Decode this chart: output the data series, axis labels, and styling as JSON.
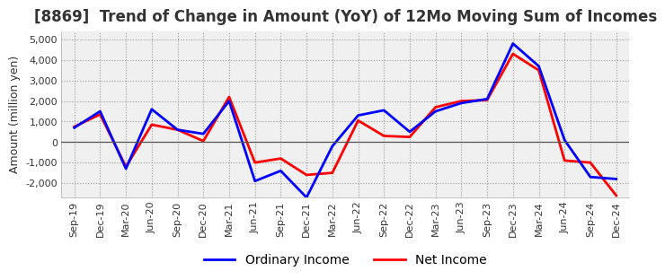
{
  "title": "[8869]  Trend of Change in Amount (YoY) of 12Mo Moving Sum of Incomes",
  "ylabel": "Amount (million yen)",
  "x_labels": [
    "Sep-19",
    "Dec-19",
    "Mar-20",
    "Jun-20",
    "Sep-20",
    "Dec-20",
    "Mar-21",
    "Jun-21",
    "Sep-21",
    "Dec-21",
    "Mar-22",
    "Jun-22",
    "Sep-22",
    "Dec-22",
    "Mar-23",
    "Jun-23",
    "Sep-23",
    "Dec-23",
    "Mar-24",
    "Jun-24",
    "Sep-24",
    "Dec-24"
  ],
  "ordinary_income": [
    700,
    1500,
    -1300,
    1600,
    600,
    400,
    2000,
    -1900,
    -1400,
    -2700,
    -200,
    1300,
    1550,
    500,
    1500,
    1900,
    2100,
    4800,
    3700,
    100,
    -1700,
    -1800
  ],
  "net_income": [
    750,
    1350,
    -1200,
    850,
    600,
    50,
    2200,
    -1000,
    -800,
    -1600,
    -1500,
    1050,
    300,
    250,
    1700,
    2000,
    2050,
    4300,
    3500,
    -900,
    -1000,
    -2600
  ],
  "ordinary_income_color": "#0000FF",
  "net_income_color": "#FF0000",
  "ylim": [
    -2700,
    5400
  ],
  "yticks": [
    -2000,
    -1000,
    0,
    1000,
    2000,
    3000,
    4000,
    5000
  ],
  "background_color": "#FFFFFF",
  "plot_bg_color": "#F0F0F0",
  "grid_color": "#999999",
  "title_fontsize": 12,
  "title_color": "#333333",
  "axis_label_fontsize": 9,
  "tick_fontsize": 8,
  "legend_fontsize": 10,
  "line_width": 2.0
}
